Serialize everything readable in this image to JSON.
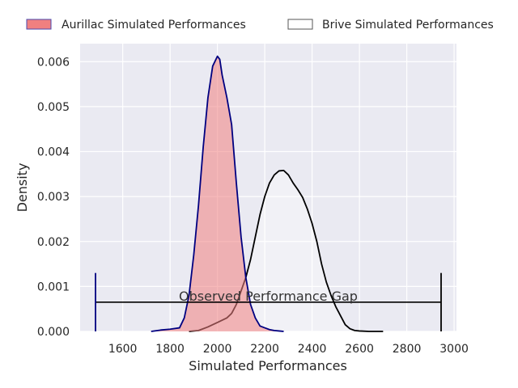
{
  "chart_data": {
    "type": "area",
    "xlabel": "Simulated Performances",
    "ylabel": "Density",
    "xlim": [
      1420,
      3010
    ],
    "ylim": [
      0,
      0.0064
    ],
    "xticks": [
      1600,
      1800,
      2000,
      2200,
      2400,
      2600,
      2800,
      3000
    ],
    "yticks": [
      0.0,
      0.001,
      0.002,
      0.003,
      0.004,
      0.005,
      0.006
    ],
    "ytick_labels": [
      "0.000",
      "0.001",
      "0.002",
      "0.003",
      "0.004",
      "0.005",
      "0.006"
    ],
    "grid": true,
    "legend_position": "top, outside plot, two columns",
    "colors": {
      "background": "#eaeaf2",
      "grid": "#ffffff",
      "aurillac_fill": "#f08080",
      "aurillac_line": "#000080",
      "brive_fill": "#ffffff",
      "brive_line": "#000000",
      "gap_line": "#000000",
      "aurillac_marker": "#000080"
    },
    "series": [
      {
        "name": "Aurillac Simulated Performances",
        "x": [
          1720,
          1760,
          1800,
          1840,
          1860,
          1880,
          1900,
          1920,
          1940,
          1960,
          1980,
          2000,
          2010,
          2020,
          2040,
          2060,
          2080,
          2100,
          2120,
          2140,
          2160,
          2180,
          2200,
          2220,
          2240,
          2260,
          2280
        ],
        "y": [
          0.0,
          3e-05,
          5e-05,
          8e-05,
          0.0003,
          0.0008,
          0.0017,
          0.0028,
          0.0041,
          0.0052,
          0.0059,
          0.00612,
          0.00605,
          0.0057,
          0.0052,
          0.0046,
          0.0033,
          0.0021,
          0.0012,
          0.0006,
          0.0003,
          0.00012,
          8e-05,
          4e-05,
          2e-05,
          1e-05,
          0.0
        ]
      },
      {
        "name": "Brive Simulated Performances",
        "x": [
          1880,
          1920,
          1960,
          2000,
          2040,
          2060,
          2080,
          2100,
          2120,
          2140,
          2160,
          2180,
          2200,
          2220,
          2240,
          2260,
          2280,
          2300,
          2320,
          2340,
          2360,
          2380,
          2400,
          2420,
          2440,
          2460,
          2480,
          2500,
          2520,
          2540,
          2560,
          2580,
          2600,
          2640,
          2680,
          2700
        ],
        "y": [
          0.0,
          2e-05,
          0.0001,
          0.0002,
          0.0003,
          0.0004,
          0.0006,
          0.0009,
          0.0012,
          0.0016,
          0.0021,
          0.0026,
          0.003,
          0.0033,
          0.00348,
          0.00357,
          0.00358,
          0.00348,
          0.0033,
          0.00315,
          0.00298,
          0.00272,
          0.0024,
          0.002,
          0.0015,
          0.0011,
          0.0008,
          0.00055,
          0.00035,
          0.00015,
          6e-05,
          2e-05,
          1e-05,
          0.0,
          0.0,
          0.0
        ]
      }
    ],
    "annotation": {
      "text": "Observed Performance Gap",
      "x_start": 1485,
      "x_end": 2945,
      "y": 0.00065,
      "marker_top": 0.0013
    }
  }
}
